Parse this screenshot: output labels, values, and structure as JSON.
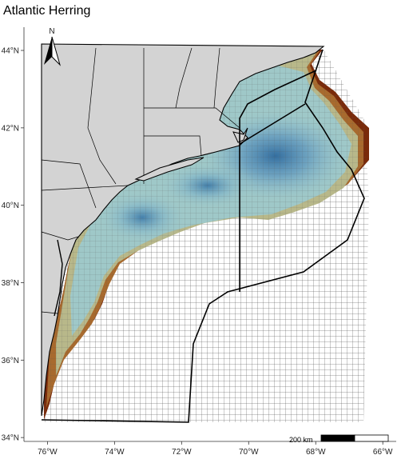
{
  "title": "Atlantic Herring",
  "north_arrow_label": "N",
  "scale_bar_label": "200 km",
  "x_ticks": [
    "76°W",
    "74°W",
    "72°W",
    "70°W",
    "68°W",
    "66°W"
  ],
  "y_ticks": [
    "44°N",
    "42°N",
    "40°N",
    "38°N",
    "36°N",
    "34°N"
  ],
  "colors": {
    "land": "#d3d3d3",
    "high": "#3a6fa0",
    "mid_high": "#8dbfcf",
    "mid": "#b8b88a",
    "low": "#b07a3a",
    "lowest": "#7a2a0a",
    "grid": "#555555"
  },
  "chart_data": {
    "type": "heatmap",
    "title": "Atlantic Herring",
    "xlabel": "",
    "ylabel": "",
    "xlim": [
      -76.7,
      -65.6
    ],
    "ylim": [
      33.9,
      44.6
    ],
    "x_ticks": [
      -76,
      -74,
      -72,
      -70,
      -68,
      -66
    ],
    "y_ticks": [
      44,
      42,
      40,
      38,
      36,
      34
    ],
    "color_scale": [
      "#7a2a0a",
      "#b07a3a",
      "#b8b88a",
      "#8dbfcf",
      "#3a6fa0"
    ],
    "hotspots": [
      {
        "lon": -69.0,
        "lat": 41.2,
        "intensity": "high"
      },
      {
        "lon": -73.0,
        "lat": 39.7,
        "intensity": "high"
      },
      {
        "lon": -70.5,
        "lat": 40.8,
        "intensity": "mid-high"
      }
    ]
  }
}
